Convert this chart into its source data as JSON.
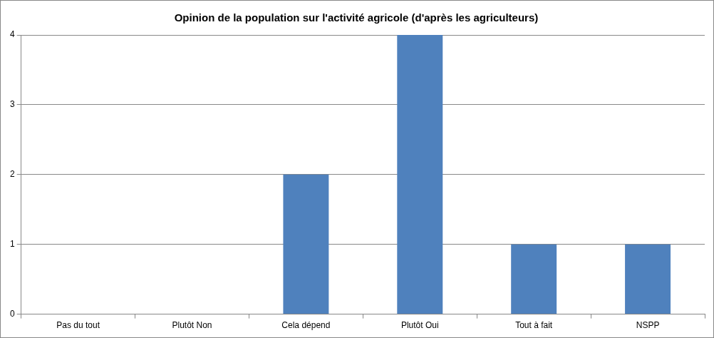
{
  "chart_data": {
    "type": "bar",
    "title": "Opinion de la population sur l'activité agricole (d'après les agriculteurs)",
    "categories": [
      "Pas du tout",
      "Plutôt Non",
      "Cela dépend",
      "Plutôt Oui",
      "Tout à fait",
      "NSPP"
    ],
    "values": [
      0,
      0,
      2,
      4,
      1,
      1
    ],
    "color": "#4f81bd",
    "ylim": [
      0,
      4
    ],
    "yticks": [
      0,
      1,
      2,
      3,
      4
    ],
    "grid": "y",
    "legend": false
  }
}
